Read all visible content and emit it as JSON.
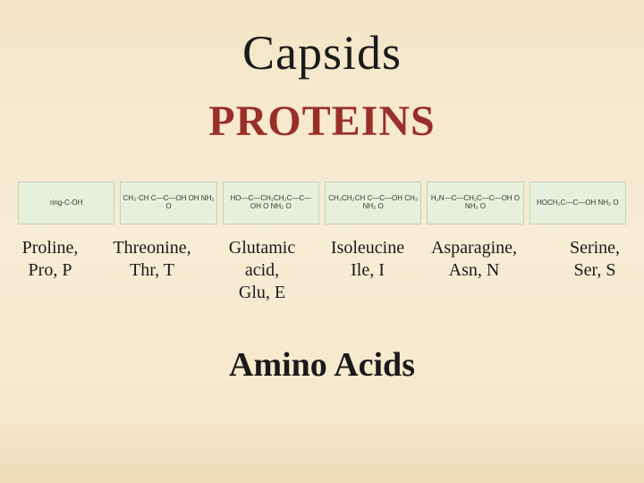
{
  "title": "Capsids",
  "heading": "PROTEINS",
  "subtitle": "Amino Acids",
  "structures": {
    "formulas": [
      "ring-C-OH",
      "CH₃·CH   C—C—OH\nOH NH₂ O",
      "HO—C—CH₂CH₂C—C—OH\nO        NH₂ O",
      "CH₃CH₂CH  C—C—OH\nCH₃  NH₂ O",
      "H₂N—C—CH₂C—C—OH\nO    NH₂ O",
      "HOCH₂C—C—OH\nNH₂ O"
    ]
  },
  "amino_acids": [
    {
      "name": "Proline,",
      "abbr": "Pro, P"
    },
    {
      "name": "Threonine,",
      "abbr": "Thr, T"
    },
    {
      "name": "Glutamic",
      "mid": "acid,",
      "abbr": "Glu, E"
    },
    {
      "name": "Isoleucine",
      "abbr": "Ile, I"
    },
    {
      "name": "Asparagine,",
      "abbr": "Asn, N"
    },
    {
      "name": "Serine,",
      "abbr": "Ser, S"
    }
  ],
  "colors": {
    "background_top": "#f3e4c4",
    "background_bottom": "#efdcb8",
    "heading_color": "#9a2f2a",
    "text_color": "#1a1a1a",
    "structure_bg": "#e7f0dc"
  }
}
